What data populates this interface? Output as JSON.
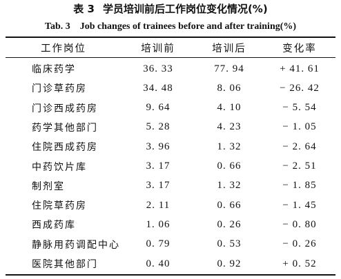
{
  "table": {
    "title_cn_number": "表 3",
    "title_cn_text": "学员培训前后工作岗位变化情况(%)",
    "title_en_number": "Tab. 3",
    "title_en_text": "Job changes of trainees before and after training(%)",
    "headers": [
      "工作岗位",
      "培训前",
      "培训后",
      "变化率"
    ],
    "rows": [
      {
        "position": "临床药学",
        "before": "36. 33",
        "after": "77. 94",
        "change": "+ 41. 61"
      },
      {
        "position": "门诊草药房",
        "before": "34. 48",
        "after": "8. 06",
        "change": "− 26. 42"
      },
      {
        "position": "门诊西成药房",
        "before": "9. 64",
        "after": "4. 10",
        "change": "− 5. 54"
      },
      {
        "position": "药学其他部门",
        "before": "5. 28",
        "after": "4. 23",
        "change": "− 1. 05"
      },
      {
        "position": "住院西成药房",
        "before": "3. 96",
        "after": "1. 32",
        "change": "− 2. 64"
      },
      {
        "position": "中药饮片库",
        "before": "3. 17",
        "after": "0. 66",
        "change": "− 2. 51"
      },
      {
        "position": "制剂室",
        "before": "3. 17",
        "after": "1. 32",
        "change": "− 1. 85"
      },
      {
        "position": "住院草药房",
        "before": "2. 11",
        "after": "0. 66",
        "change": "− 1. 45"
      },
      {
        "position": "西成药库",
        "before": "1. 06",
        "after": "0. 26",
        "change": "− 0. 80"
      },
      {
        "position": "静脉用药调配中心",
        "before": "0. 79",
        "after": "0. 53",
        "change": "− 0. 26"
      },
      {
        "position": "医院其他部门",
        "before": "0. 40",
        "after": "0. 92",
        "change": "+ 0. 52"
      }
    ]
  }
}
